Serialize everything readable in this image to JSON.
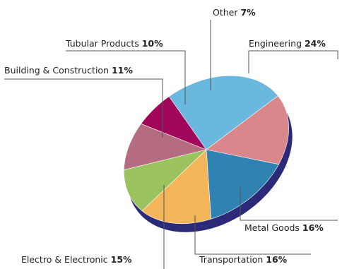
{
  "chart_data": {
    "type": "pie",
    "title": "",
    "slices": [
      {
        "label": "Engineering",
        "pct_label": "24%",
        "value": 24,
        "color": "#6ab8dd"
      },
      {
        "label": "Metal Goods",
        "pct_label": "16%",
        "value": 16,
        "color": "#d8888a"
      },
      {
        "label": "Transportation",
        "pct_label": "16%",
        "value": 16,
        "color": "#2f82b1"
      },
      {
        "label": "Electro & Electronic",
        "pct_label": "15%",
        "value": 15,
        "color": "#f4b55a"
      },
      {
        "label": "Building & Construction",
        "pct_label": "11%",
        "value": 11,
        "color": "#9ac25e"
      },
      {
        "label": "Tubular Products",
        "pct_label": "10%",
        "value": 10,
        "color": "#b56c80"
      },
      {
        "label": "Other",
        "pct_label": "7%",
        "value": 7,
        "color": "#a0075a"
      }
    ],
    "edge_color": "#2a2a78",
    "leader_color": "#555555"
  }
}
